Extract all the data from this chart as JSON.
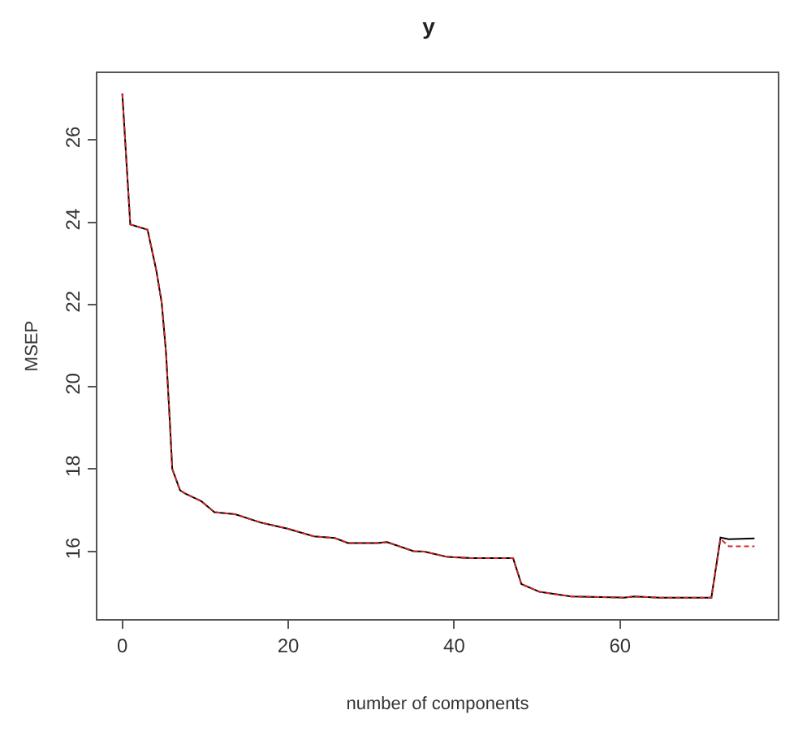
{
  "chart_data": {
    "type": "line",
    "title": "y",
    "xlabel": "number of components",
    "ylabel": "MSEP",
    "xlim": [
      -3,
      79
    ],
    "ylim": [
      14.35,
      27.63
    ],
    "xticks": [
      0,
      20,
      40,
      60
    ],
    "yticks": [
      16,
      18,
      20,
      22,
      24,
      26
    ],
    "x": [
      0,
      0.96,
      3.04,
      4.1,
      4.75,
      5.26,
      5.7,
      6.02,
      6.96,
      7.6,
      9.5,
      11.1,
      13.6,
      16.8,
      19.9,
      23.1,
      25.6,
      27.2,
      30.7,
      31.9,
      35.1,
      36.4,
      39.2,
      42.1,
      47.1,
      48.1,
      50.3,
      54.1,
      60.4,
      61.7,
      64.8,
      71.0,
      72.1,
      73.1,
      76.2
    ],
    "series": [
      {
        "color": "#000000",
        "line_style": "solid",
        "values": [
          27.13,
          23.95,
          23.82,
          22.83,
          22.04,
          20.85,
          19.26,
          18.0,
          17.48,
          17.4,
          17.22,
          16.95,
          16.9,
          16.69,
          16.55,
          16.36,
          16.32,
          16.2,
          16.2,
          16.22,
          16.0,
          15.99,
          15.86,
          15.83,
          15.83,
          15.2,
          15.01,
          14.9,
          14.87,
          14.9,
          14.87,
          14.87,
          16.33,
          16.29,
          16.31
        ]
      },
      {
        "color": "#d62728",
        "line_style": "dashed",
        "values": [
          27.13,
          23.95,
          23.82,
          22.83,
          22.04,
          20.85,
          19.26,
          18.0,
          17.48,
          17.4,
          17.22,
          16.95,
          16.9,
          16.69,
          16.55,
          16.36,
          16.32,
          16.2,
          16.2,
          16.22,
          16.0,
          15.99,
          15.86,
          15.83,
          15.83,
          15.2,
          15.01,
          14.9,
          14.87,
          14.9,
          14.87,
          14.87,
          16.3,
          16.12,
          16.12
        ]
      }
    ]
  }
}
